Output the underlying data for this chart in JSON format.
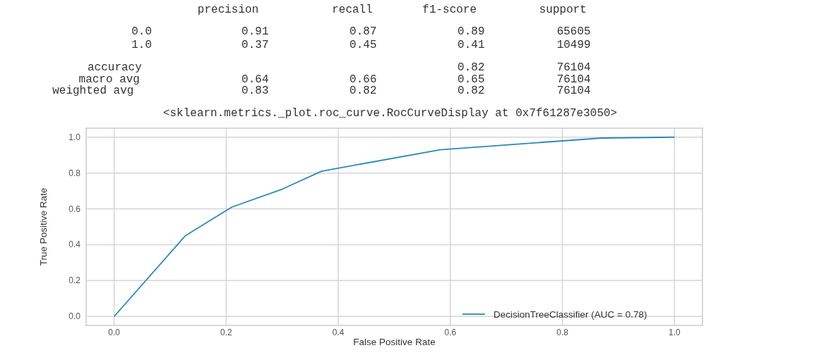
{
  "chart_data": {
    "type": "line",
    "annotations": [
      "              precision    recall  f1-score   support",
      "         0.0       0.91      0.87      0.89     65605",
      "         1.0       0.37      0.45      0.41     10499",
      "    accuracy                           0.82     76104",
      "   macro avg       0.64      0.66      0.65     76104",
      "weighted avg       0.83      0.82      0.82     76104",
      "<sklearn.metrics._plot.roc_curve.RocCurveDisplay at 0x7f61287e3050>"
    ],
    "xlabel": "False Positive Rate",
    "ylabel": "True Positive Rate",
    "xlim": [
      -0.05,
      1.05
    ],
    "ylim": [
      -0.05,
      1.05
    ],
    "xticks": [
      {
        "value": 0,
        "label": "0.0"
      },
      {
        "value": 0.2,
        "label": "0.2"
      },
      {
        "value": 0.4,
        "label": "0.4"
      },
      {
        "value": 0.6,
        "label": "0.6"
      },
      {
        "value": 0.8,
        "label": "0.8"
      },
      {
        "value": 1,
        "label": "1.0"
      }
    ],
    "yticks": [
      {
        "value": 0,
        "label": "0.0"
      },
      {
        "value": 0.2,
        "label": "0.2"
      },
      {
        "value": 0.4,
        "label": "0.4"
      },
      {
        "value": 0.6,
        "label": "0.6"
      },
      {
        "value": 0.8,
        "label": "0.8"
      },
      {
        "value": 1,
        "label": "1.0"
      }
    ],
    "grid": true,
    "legend": "bottom right",
    "series": [
      {
        "name": "DecisionTreeClassifier (AUC = 0.78)",
        "color": "#2a8ab5",
        "x": [
          0,
          0.127,
          0.21,
          0.3,
          0.37,
          0.582,
          0.87,
          1.0
        ],
        "values": [
          0,
          0.45,
          0.61,
          0.71,
          0.81,
          0.93,
          0.995,
          1.0
        ]
      }
    ]
  }
}
